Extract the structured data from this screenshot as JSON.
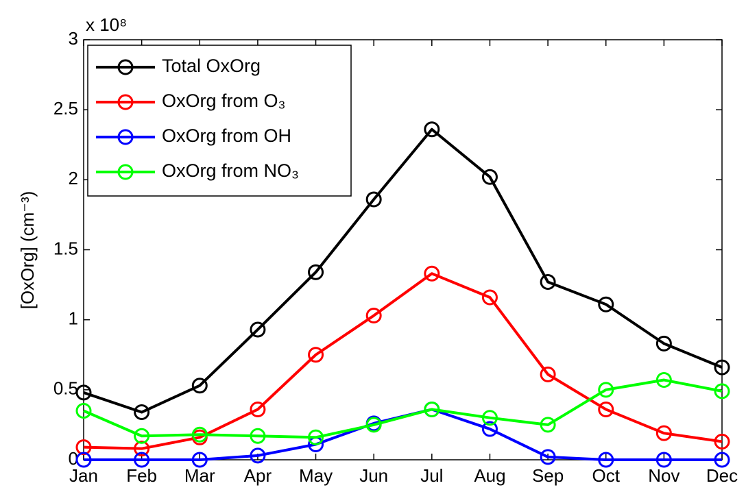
{
  "chart_data": {
    "type": "line",
    "y_multiplier": "x 10⁸",
    "ylabel": "[OxOrg] (cm⁻³)",
    "categories": [
      "Jan",
      "Feb",
      "Mar",
      "Apr",
      "May",
      "Jun",
      "Jul",
      "Aug",
      "Sep",
      "Oct",
      "Nov",
      "Dec"
    ],
    "series": [
      {
        "name": "Total OxOrg",
        "color": "#000000",
        "values": [
          0.48,
          0.34,
          0.53,
          0.93,
          1.34,
          1.86,
          2.36,
          2.02,
          1.27,
          1.11,
          0.83,
          0.66
        ]
      },
      {
        "name": "OxOrg from O₃",
        "color": "#ff0000",
        "values": [
          0.09,
          0.08,
          0.16,
          0.36,
          0.75,
          1.03,
          1.33,
          1.16,
          0.61,
          0.36,
          0.19,
          0.13
        ]
      },
      {
        "name": "OxOrg from OH",
        "color": "#0000ff",
        "values": [
          0,
          0,
          0,
          0.03,
          0.11,
          0.26,
          0.36,
          0.22,
          0.02,
          0,
          0,
          0
        ]
      },
      {
        "name": "OxOrg from NO₃",
        "color": "#00ff00",
        "values": [
          0.35,
          0.17,
          0.18,
          0.17,
          0.16,
          0.25,
          0.36,
          0.3,
          0.25,
          0.5,
          0.57,
          0.49
        ]
      }
    ],
    "ylim": [
      0,
      3
    ],
    "yticks": [
      0,
      0.5,
      1,
      1.5,
      2,
      2.5,
      3
    ],
    "grid": false,
    "legend": "upper left"
  }
}
